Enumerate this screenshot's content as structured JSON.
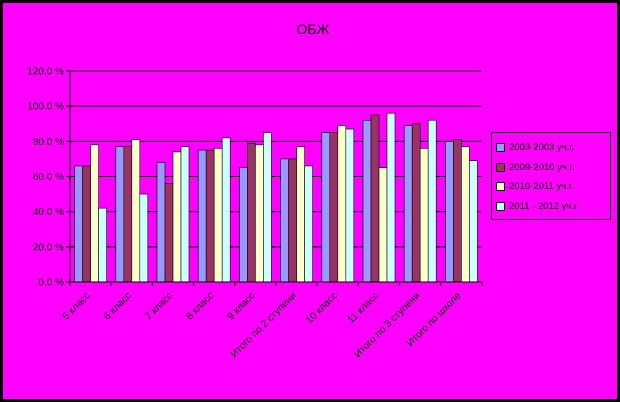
{
  "chart_data": {
    "type": "bar",
    "title": "ОБЖ",
    "categories": [
      "5 класс",
      "6 класс",
      "7 класс",
      "8 класс",
      "9 класс",
      "Итого по 2 ступени",
      "10 класс",
      "11 класс",
      "Итого по 3 ступени",
      "Итого по школе"
    ],
    "series": [
      {
        "name": "2003-2003 уч.г.",
        "color": "#9999ff",
        "values": [
          66,
          77,
          68,
          75,
          65,
          70,
          85,
          92,
          89,
          80
        ]
      },
      {
        "name": "2009-2010 уч.г.",
        "color": "#993366",
        "values": [
          66,
          77,
          56,
          75,
          79,
          70,
          85,
          95,
          90,
          81
        ]
      },
      {
        "name": "2010-2011 уч.г.",
        "color": "#ffffcc",
        "values": [
          78,
          81,
          74,
          76,
          78,
          77,
          89,
          65,
          76,
          77
        ]
      },
      {
        "name": "2011 - 2012 уч.г.",
        "color": "#ccffff",
        "values": [
          42,
          50,
          77,
          82,
          85,
          66,
          87,
          96,
          92,
          69
        ]
      }
    ],
    "yticks": [
      "0.0 %",
      "20.0 %",
      "40.0 %",
      "60.0 %",
      "80.0 %",
      "100.0 %",
      "120.0 %"
    ],
    "ylim": [
      0,
      120
    ],
    "xlabel": "",
    "ylabel": "",
    "grid": "horizontal",
    "legend_position": "right"
  }
}
